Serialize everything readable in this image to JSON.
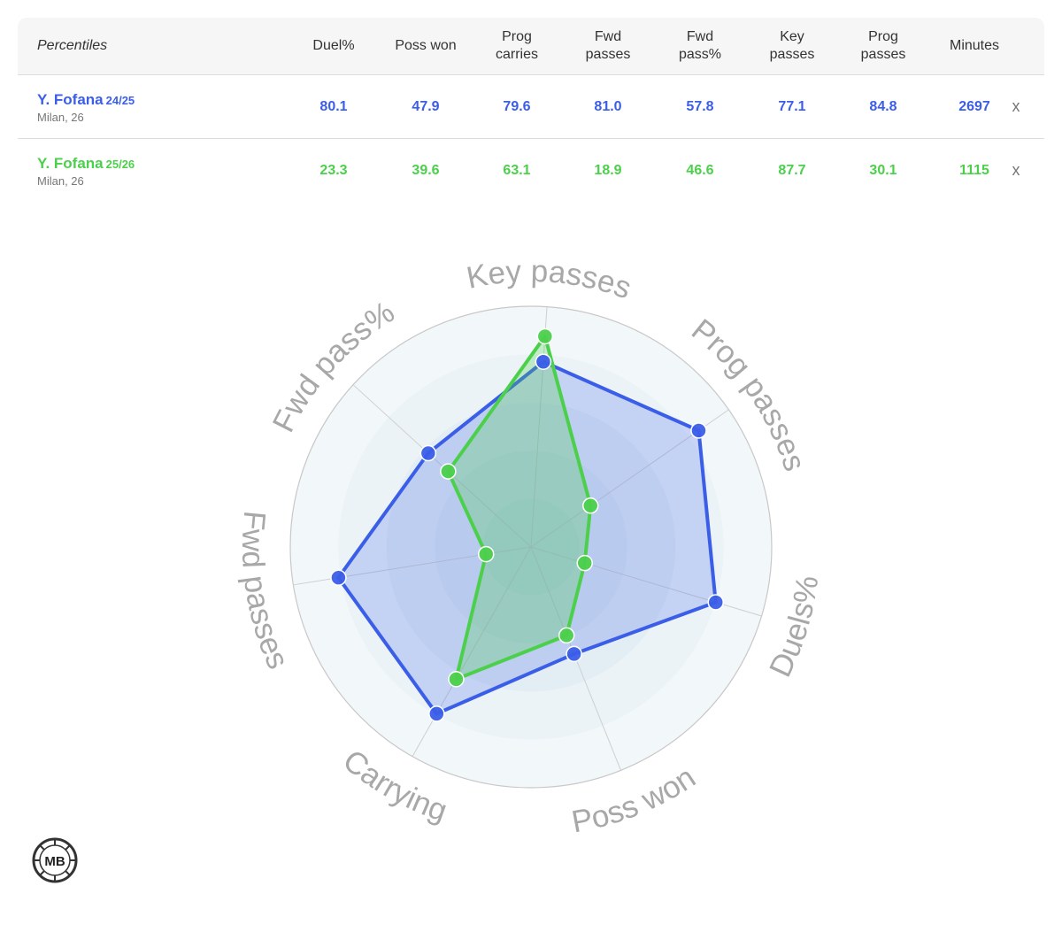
{
  "table": {
    "header_label": "Percentiles",
    "columns": [
      "Duel%",
      "Poss won",
      "Prog\ncarries",
      "Fwd\npasses",
      "Fwd\npass%",
      "Key\npasses",
      "Prog\npasses",
      "Minutes"
    ],
    "rows": [
      {
        "name": "Y. Fofana",
        "season": "24/25",
        "sub": "Milan, 26",
        "color": "#3b5ee8",
        "values": [
          "80.1",
          "47.9",
          "79.6",
          "81.0",
          "57.8",
          "77.1",
          "84.8",
          "2697"
        ],
        "remove": "x"
      },
      {
        "name": "Y. Fofana",
        "season": "25/26",
        "sub": "Milan, 26",
        "color": "#4cd04c",
        "values": [
          "23.3",
          "39.6",
          "63.1",
          "18.9",
          "46.6",
          "87.7",
          "30.1",
          "1115"
        ],
        "remove": "x"
      }
    ]
  },
  "chart_data": {
    "type": "radar",
    "axes": [
      "Key passes",
      "Prog passes",
      "Duels%",
      "Poss won",
      "Carrying",
      "Fwd passes",
      "Fwd pass%"
    ],
    "range": [
      0,
      100
    ],
    "series": [
      {
        "name": "Y. Fofana 24/25",
        "color": "#3b5ee8",
        "values": [
          77.1,
          84.8,
          80.1,
          47.9,
          79.6,
          81.0,
          57.8
        ]
      },
      {
        "name": "Y. Fofana 25/26",
        "color": "#4cd04c",
        "values": [
          87.7,
          30.1,
          23.3,
          39.6,
          63.1,
          18.9,
          46.6
        ]
      }
    ]
  },
  "logo": {
    "text": "MB"
  }
}
